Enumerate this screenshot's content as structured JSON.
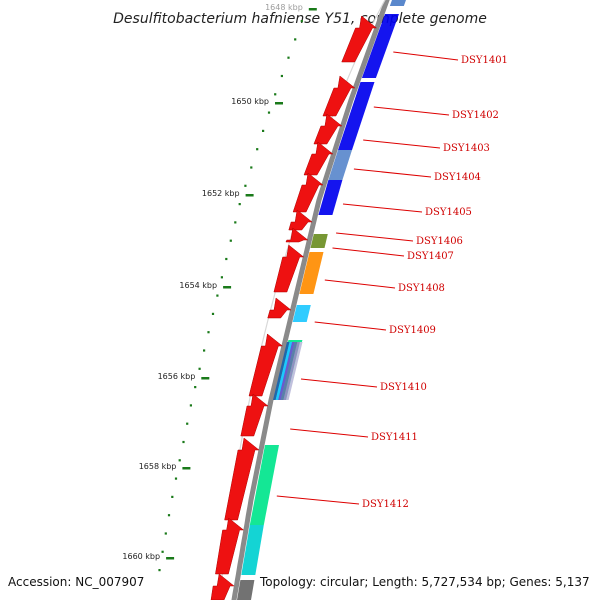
{
  "title": "Desulfitobacterium hafniense Y51, complete genome",
  "footer": {
    "accession": "Accession: NC_007907",
    "topology": "Topology: circular; Length: 5,727,534 bp; Genes: 5,137"
  },
  "ticks": [
    {
      "label": "1648 kbp",
      "faded": true
    },
    {
      "label": "1650 kbp"
    },
    {
      "label": "1652 kbp"
    },
    {
      "label": "1654 kbp"
    },
    {
      "label": "1656 kbp"
    },
    {
      "label": "1658 kbp"
    },
    {
      "label": "1660 kbp"
    }
  ],
  "gene_labels": [
    "DSY1401",
    "DSY1402",
    "DSY1403",
    "DSY1404",
    "DSY1405",
    "DSY1406",
    "DSY1407",
    "DSY1408",
    "DSY1409",
    "DSY1410",
    "DSY1411",
    "DSY1412"
  ],
  "colors": {
    "backbone": "#8a8a8a",
    "gene_forward": "#ee1111",
    "tick": "#1a7a1a",
    "label_line": "#dd0000"
  },
  "feature_colors": [
    "#0000ee",
    "#5a88cc",
    "#6b8e23",
    "#ff8c00",
    "#1ec8ff",
    "#00e58c",
    "#00d0d0",
    "#666666"
  ]
}
